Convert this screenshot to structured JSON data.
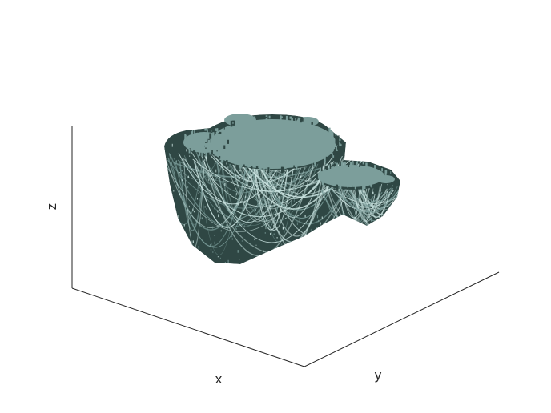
{
  "chart_data": {
    "type": "3d-surface",
    "xlabel": "x",
    "ylabel": "y",
    "zlabel": "z",
    "ticks": "none",
    "grid": false,
    "surface_color": "#7c9e9b",
    "shadow_color": "#2f4744",
    "highlight_color": "#c9e2df"
  }
}
